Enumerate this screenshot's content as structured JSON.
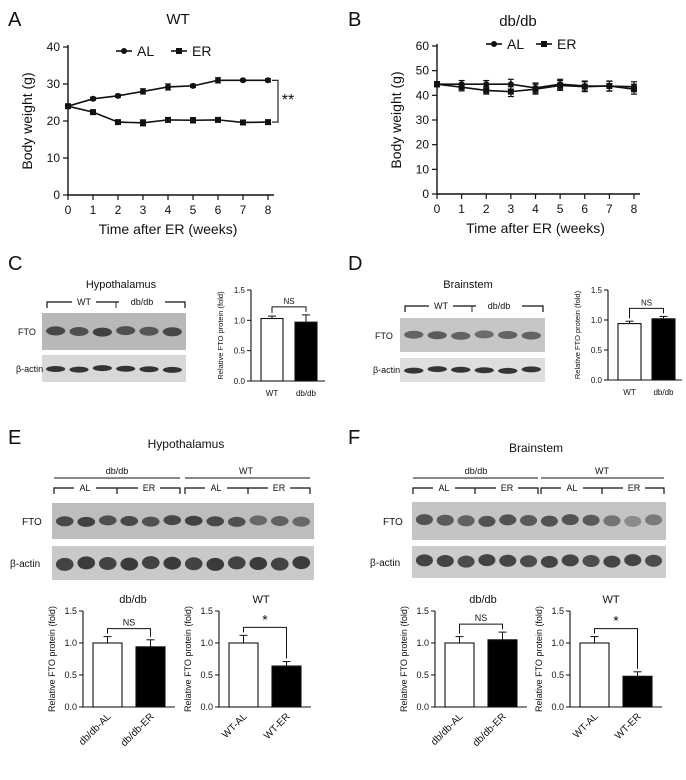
{
  "panels": {
    "A": {
      "letter": "A",
      "title": "WT"
    },
    "B": {
      "letter": "B",
      "title": "db/db"
    },
    "C": {
      "letter": "C",
      "tissue": "Hypothalamus",
      "group1": "WT",
      "group2": "db/db",
      "band1": "FTO",
      "band2": "β-actin"
    },
    "D": {
      "letter": "D",
      "tissue": "Brainstem",
      "group1": "WT",
      "group2": "db/db",
      "band1": "FTO",
      "band2": "β-actin"
    },
    "E": {
      "letter": "E",
      "tissue": "Hypothalamus",
      "group1": "db/db",
      "group2": "WT",
      "sub1": "AL",
      "sub2": "ER",
      "sub3": "AL",
      "sub4": "ER",
      "band1": "FTO",
      "band2": "β-actin",
      "chart1_title": "db/db",
      "chart2_title": "WT"
    },
    "F": {
      "letter": "F",
      "tissue": "Brainstem",
      "group1": "db/db",
      "group2": "WT",
      "sub1": "AL",
      "sub2": "ER",
      "sub3": "AL",
      "sub4": "ER",
      "band1": "FTO",
      "band2": "β-actin",
      "chart1_title": "db/db",
      "chart2_title": "WT"
    }
  },
  "chart_data": [
    {
      "id": "A",
      "type": "line",
      "title": "WT",
      "xlabel": "Time after ER (weeks)",
      "ylabel": "Body weight (g)",
      "xlim": [
        0,
        8
      ],
      "ylim": [
        0,
        40
      ],
      "xticks": [
        0,
        1,
        2,
        3,
        4,
        5,
        6,
        7,
        8
      ],
      "yticks": [
        0,
        10,
        20,
        30,
        40
      ],
      "legend_position": "top",
      "annotation": "**",
      "x": [
        0,
        1,
        2,
        3,
        4,
        5,
        6,
        7,
        8
      ],
      "series": [
        {
          "name": "AL",
          "marker": "circle",
          "values": [
            24,
            26,
            26.8,
            28,
            29.2,
            29.5,
            31,
            31,
            31
          ],
          "errors": [
            0.3,
            0.4,
            0.4,
            0.7,
            0.8,
            0.4,
            0.7,
            0.3,
            0.4
          ]
        },
        {
          "name": "ER",
          "marker": "square",
          "values": [
            24,
            22.4,
            19.7,
            19.5,
            20.3,
            20.2,
            20.3,
            19.6,
            19.7
          ],
          "errors": [
            0.3,
            0.4,
            0.3,
            0.8,
            0.4,
            0.7,
            0.6,
            0.5,
            0.4
          ]
        }
      ]
    },
    {
      "id": "B",
      "type": "line",
      "title": "db/db",
      "xlabel": "Time after ER (weeks)",
      "ylabel": "Body weight (g)",
      "xlim": [
        0,
        8
      ],
      "ylim": [
        0,
        60
      ],
      "xticks": [
        0,
        1,
        2,
        3,
        4,
        5,
        6,
        7,
        8
      ],
      "yticks": [
        0,
        10,
        20,
        30,
        40,
        50,
        60
      ],
      "legend_position": "top",
      "x": [
        0,
        1,
        2,
        3,
        4,
        5,
        6,
        7,
        8
      ],
      "series": [
        {
          "name": "AL",
          "marker": "circle",
          "values": [
            44.5,
            44.5,
            44.5,
            44.5,
            43,
            44.5,
            43.8,
            43.7,
            43.5
          ],
          "errors": [
            1,
            1.5,
            1.5,
            2,
            2,
            2,
            2,
            2,
            2
          ]
        },
        {
          "name": "ER",
          "marker": "square",
          "values": [
            44.5,
            43.3,
            42,
            41.5,
            42.5,
            44,
            43.5,
            43.8,
            42.5
          ],
          "errors": [
            1,
            1.5,
            1.5,
            2,
            2,
            2,
            2,
            2,
            2
          ]
        }
      ]
    },
    {
      "id": "C",
      "type": "bar",
      "ylabel": "Relative FTO protein (fold)",
      "categories": [
        "WT",
        "db/db"
      ],
      "values": [
        1.03,
        0.97
      ],
      "errors": [
        0.04,
        0.12
      ],
      "fills": [
        "#ffffff",
        "#000000"
      ],
      "ylim": [
        0,
        1.5
      ],
      "yticks": [
        "0.0",
        "0.5",
        "1.0",
        "1.5"
      ],
      "annotation": "NS"
    },
    {
      "id": "D",
      "type": "bar",
      "ylabel": "Relative FTO protein (fold)",
      "categories": [
        "WT",
        "db/db"
      ],
      "values": [
        0.94,
        1.02
      ],
      "errors": [
        0.04,
        0.04
      ],
      "fills": [
        "#ffffff",
        "#000000"
      ],
      "ylim": [
        0,
        1.5
      ],
      "yticks": [
        "0.0",
        "0.5",
        "1.0",
        "1.5"
      ],
      "annotation": "NS"
    },
    {
      "id": "E1",
      "type": "bar",
      "title": "db/db",
      "ylabel": "Relative FTO protein (fold)",
      "categories": [
        "db/db-AL",
        "db/db-ER"
      ],
      "values": [
        1.0,
        0.94
      ],
      "errors": [
        0.1,
        0.11
      ],
      "fills": [
        "#ffffff",
        "#000000"
      ],
      "ylim": [
        0,
        1.5
      ],
      "yticks": [
        "0.0",
        "0.5",
        "1.0",
        "1.5"
      ],
      "annotation": "NS"
    },
    {
      "id": "E2",
      "type": "bar",
      "title": "WT",
      "ylabel": "Relative FTO protein (fold)",
      "categories": [
        "WT-AL",
        "WT-ER"
      ],
      "values": [
        1.0,
        0.64
      ],
      "errors": [
        0.12,
        0.07
      ],
      "fills": [
        "#ffffff",
        "#000000"
      ],
      "ylim": [
        0,
        1.5
      ],
      "yticks": [
        "0.0",
        "0.5",
        "1.0",
        "1.5"
      ],
      "annotation": "*"
    },
    {
      "id": "F1",
      "type": "bar",
      "title": "db/db",
      "ylabel": "Relative FTO protein (fold)",
      "categories": [
        "db/db-AL",
        "db/db-ER"
      ],
      "values": [
        1.0,
        1.05
      ],
      "errors": [
        0.1,
        0.12
      ],
      "fills": [
        "#ffffff",
        "#000000"
      ],
      "ylim": [
        0,
        1.5
      ],
      "yticks": [
        "0.0",
        "0.5",
        "1.0",
        "1.5"
      ],
      "annotation": "NS"
    },
    {
      "id": "F2",
      "type": "bar",
      "title": "WT",
      "ylabel": "Relative FTO protein (fold)",
      "categories": [
        "WT-AL",
        "WT-ER"
      ],
      "values": [
        1.0,
        0.48
      ],
      "errors": [
        0.1,
        0.07
      ],
      "fills": [
        "#ffffff",
        "#000000"
      ],
      "ylim": [
        0,
        1.5
      ],
      "yticks": [
        "0.0",
        "0.5",
        "1.0",
        "1.5"
      ],
      "annotation": "*"
    }
  ]
}
